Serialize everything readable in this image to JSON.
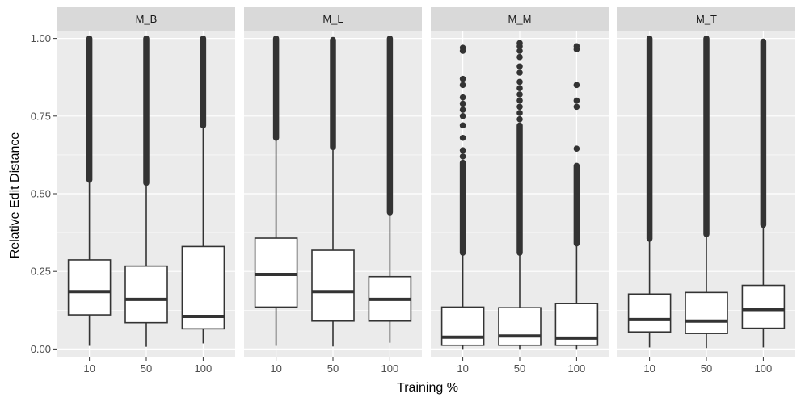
{
  "chart_data": {
    "type": "boxplot",
    "facet_layout": "1 row x 4 columns",
    "xlabel": "Training %",
    "ylabel": "Relative Edit Distance",
    "ylim": [
      -0.025,
      1.025
    ],
    "yticks": [
      0.0,
      0.25,
      0.5,
      0.75,
      1.0
    ],
    "ytick_labels": [
      "0.00",
      "0.25",
      "0.50",
      "0.75",
      "1.00"
    ],
    "categories": [
      "10",
      "50",
      "100"
    ],
    "grid": true,
    "colors": {
      "panel_bg": "#ebebeb",
      "strip_bg": "#d9d9d9",
      "grid": "#ffffff",
      "box_fill": "#ffffff",
      "box_stroke": "#333333"
    },
    "panels": [
      {
        "name": "M_B",
        "boxes": [
          {
            "category": "10",
            "min": 0.01,
            "q1": 0.11,
            "median": 0.185,
            "q3": 0.287,
            "whisker_high": 0.545,
            "outliers_dense": [
              0.545,
              1.0
            ]
          },
          {
            "category": "50",
            "min": 0.007,
            "q1": 0.085,
            "median": 0.16,
            "q3": 0.267,
            "whisker_high": 0.535,
            "outliers_dense": [
              0.535,
              1.0
            ]
          },
          {
            "category": "100",
            "min": 0.018,
            "q1": 0.065,
            "median": 0.105,
            "q3": 0.33,
            "whisker_high": 0.72,
            "outliers_dense": [
              0.72,
              1.0
            ]
          }
        ]
      },
      {
        "name": "M_L",
        "boxes": [
          {
            "category": "10",
            "min": 0.01,
            "q1": 0.135,
            "median": 0.24,
            "q3": 0.357,
            "whisker_high": 0.68,
            "outliers_dense": [
              0.68,
              1.0
            ]
          },
          {
            "category": "50",
            "min": 0.008,
            "q1": 0.09,
            "median": 0.185,
            "q3": 0.318,
            "whisker_high": 0.65,
            "outliers_dense": [
              0.65,
              0.995
            ]
          },
          {
            "category": "100",
            "min": 0.02,
            "q1": 0.09,
            "median": 0.16,
            "q3": 0.233,
            "whisker_high": 0.44,
            "outliers_dense": [
              0.44,
              1.0
            ]
          }
        ]
      },
      {
        "name": "M_M",
        "boxes": [
          {
            "category": "10",
            "min": 0.0,
            "q1": 0.012,
            "median": 0.038,
            "q3": 0.135,
            "whisker_high": 0.31,
            "outliers_dense": [
              0.31,
              0.6
            ],
            "outliers": [
              0.62,
              0.64,
              0.68,
              0.72,
              0.75,
              0.77,
              0.79,
              0.81,
              0.85,
              0.87,
              0.96,
              0.97
            ]
          },
          {
            "category": "50",
            "min": 0.0,
            "q1": 0.012,
            "median": 0.042,
            "q3": 0.133,
            "whisker_high": 0.31,
            "outliers_dense": [
              0.31,
              0.72
            ],
            "outliers": [
              0.74,
              0.76,
              0.78,
              0.8,
              0.82,
              0.84,
              0.86,
              0.89,
              0.91,
              0.94,
              0.96,
              0.975,
              0.985
            ]
          },
          {
            "category": "100",
            "min": 0.0,
            "q1": 0.012,
            "median": 0.035,
            "q3": 0.147,
            "whisker_high": 0.34,
            "outliers_dense": [
              0.34,
              0.59
            ],
            "outliers": [
              0.645,
              0.78,
              0.8,
              0.85,
              0.965,
              0.975
            ]
          }
        ]
      },
      {
        "name": "M_T",
        "boxes": [
          {
            "category": "10",
            "min": 0.005,
            "q1": 0.055,
            "median": 0.095,
            "q3": 0.177,
            "whisker_high": 0.355,
            "outliers_dense": [
              0.355,
              1.0
            ]
          },
          {
            "category": "50",
            "min": 0.003,
            "q1": 0.05,
            "median": 0.09,
            "q3": 0.182,
            "whisker_high": 0.37,
            "outliers_dense": [
              0.37,
              1.0
            ]
          },
          {
            "category": "100",
            "min": 0.005,
            "q1": 0.067,
            "median": 0.127,
            "q3": 0.205,
            "whisker_high": 0.4,
            "outliers_dense": [
              0.4,
              0.99
            ]
          }
        ]
      }
    ]
  }
}
